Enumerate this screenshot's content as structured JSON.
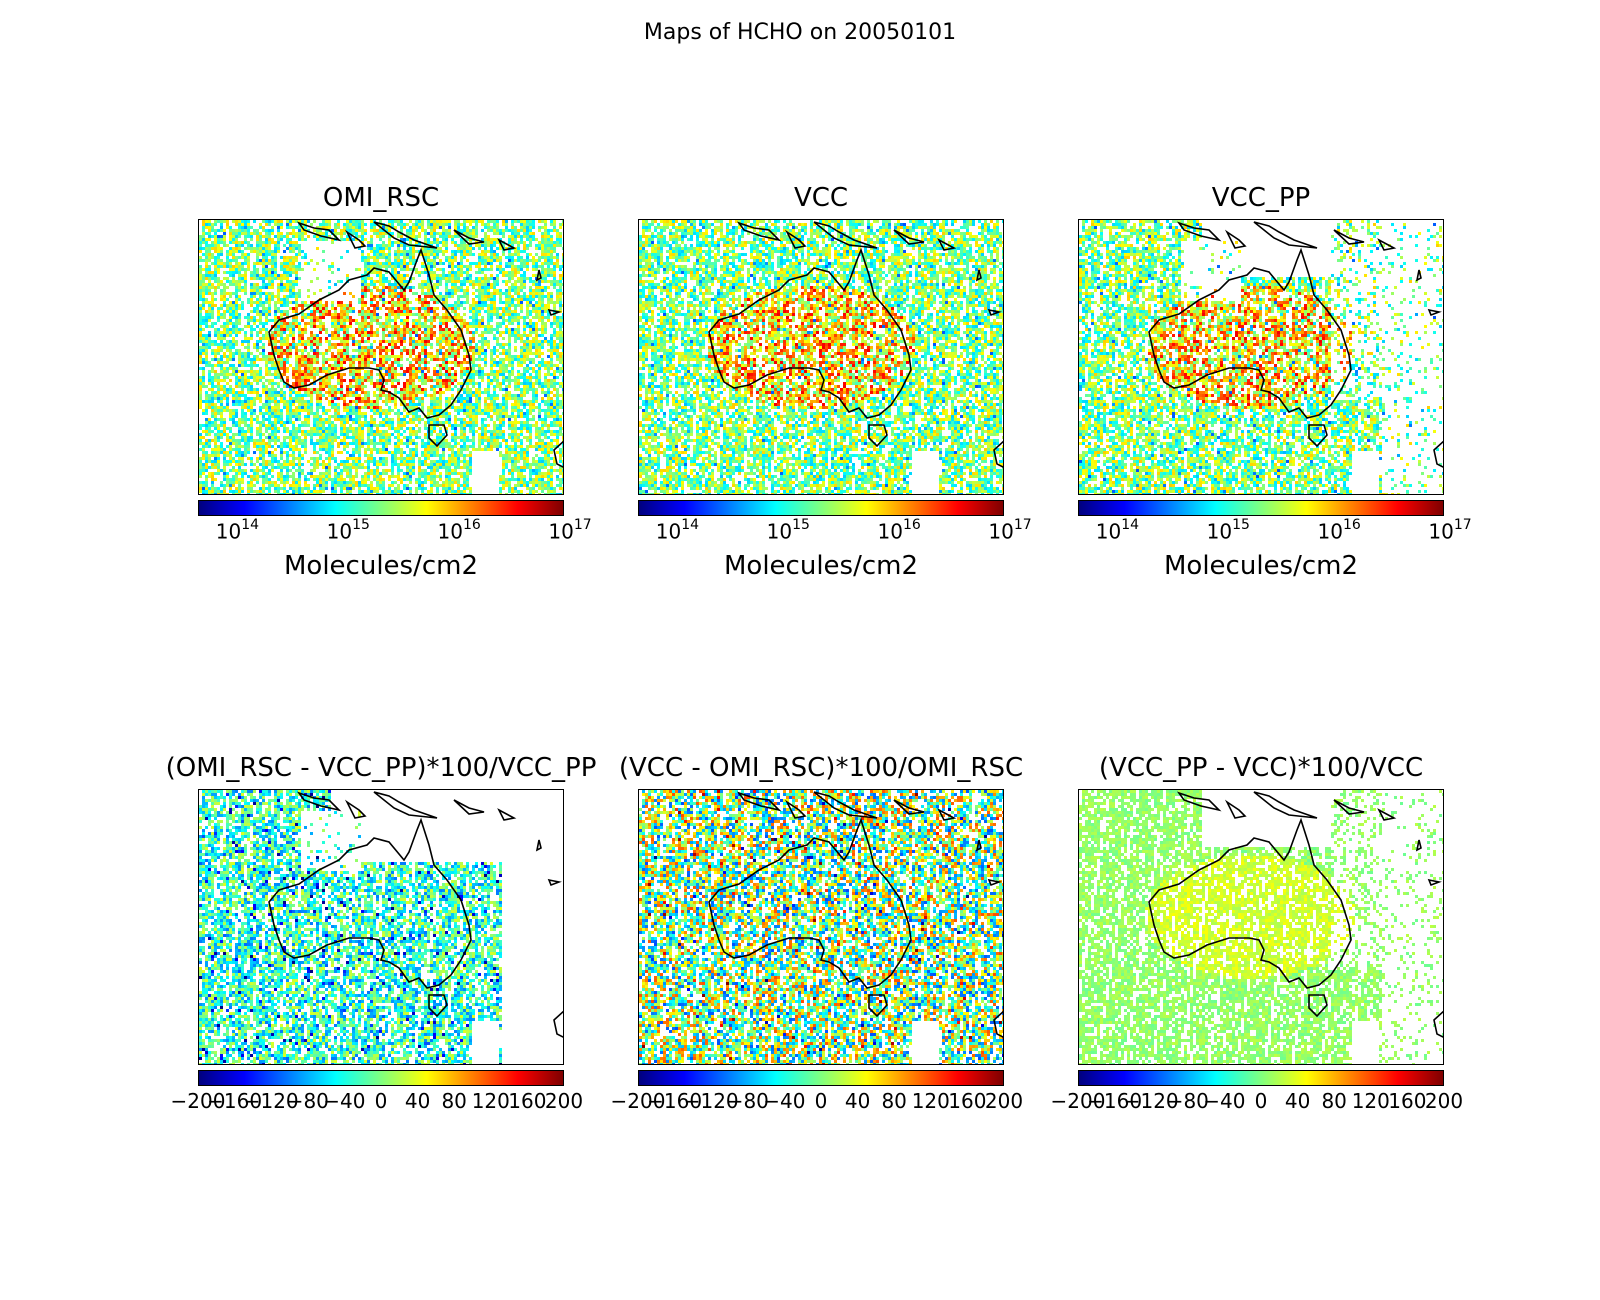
{
  "suptitle": "Maps of HCHO on 20050101",
  "colormap": [
    "#00007f",
    "#0000ff",
    "#007fff",
    "#00ffff",
    "#7fff7f",
    "#ffff00",
    "#ff7f00",
    "#ff0000",
    "#7f0000"
  ],
  "chart_data": [
    {
      "type": "heatmap",
      "title": "OMI_RSC",
      "colorbar": {
        "scale": "log",
        "range": [
          50000000000000.0,
          1e+17
        ],
        "ticks": [
          "14",
          "15",
          "16",
          "17"
        ],
        "tick_base": "10",
        "label": "Molecules/cm2"
      }
    },
    {
      "type": "heatmap",
      "title": "VCC",
      "colorbar": {
        "scale": "log",
        "range": [
          50000000000000.0,
          1e+17
        ],
        "ticks": [
          "14",
          "15",
          "16",
          "17"
        ],
        "tick_base": "10",
        "label": "Molecules/cm2"
      }
    },
    {
      "type": "heatmap",
      "title": "VCC_PP",
      "colorbar": {
        "scale": "log",
        "range": [
          50000000000000.0,
          1e+17
        ],
        "ticks": [
          "14",
          "15",
          "16",
          "17"
        ],
        "tick_base": "10",
        "label": "Molecules/cm2"
      }
    },
    {
      "type": "heatmap",
      "title": "(OMI_RSC - VCC_PP)*100/VCC_PP",
      "colorbar": {
        "scale": "linear",
        "range": [
          -200,
          200
        ],
        "ticks": [
          "−200",
          "−160",
          "−120",
          "−80",
          "−40",
          "0",
          "40",
          "80",
          "120",
          "160",
          "200"
        ],
        "label": ""
      }
    },
    {
      "type": "heatmap",
      "title": "(VCC - OMI_RSC)*100/OMI_RSC",
      "colorbar": {
        "scale": "linear",
        "range": [
          -200,
          200
        ],
        "ticks": [
          "−200",
          "−160",
          "−120",
          "−80",
          "−40",
          "0",
          "40",
          "80",
          "120",
          "160",
          "200"
        ],
        "label": ""
      }
    },
    {
      "type": "heatmap",
      "title": "(VCC_PP - VCC)*100/VCC",
      "colorbar": {
        "scale": "linear",
        "range": [
          -200,
          200
        ],
        "ticks": [
          "−200",
          "−160",
          "−120",
          "−80",
          "−40",
          "0",
          "40",
          "80",
          "120",
          "160",
          "200"
        ],
        "label": ""
      }
    }
  ]
}
